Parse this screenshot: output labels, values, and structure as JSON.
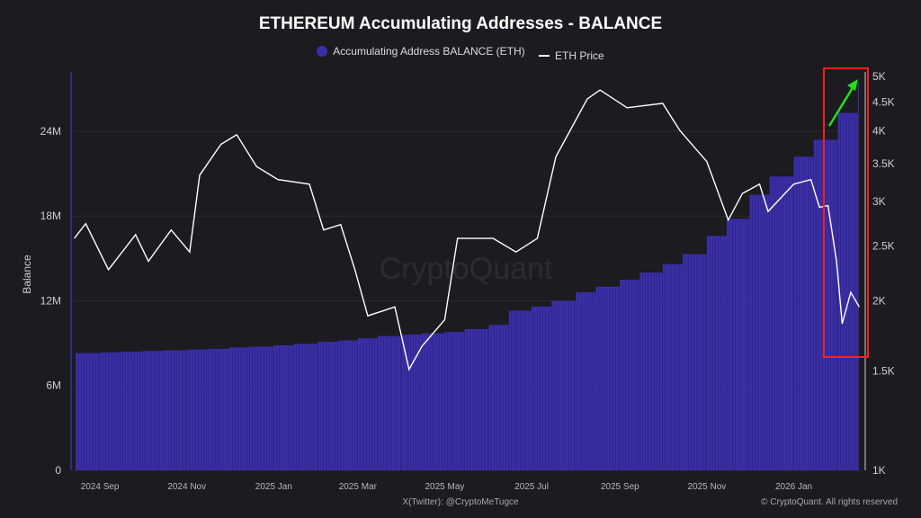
{
  "chart_data": {
    "type": "bar+line",
    "title": "ETHEREUM Accumulating Addresses - BALANCE",
    "ylabel": "Balance",
    "legend": [
      "Accumulating Address BALANCE (ETH)",
      "ETH Price"
    ],
    "legend_placement": "top-center",
    "colors": {
      "balance": "#3b2fa6",
      "price": "#ffffff",
      "highlight_box": "#ff1e1e",
      "arrow": "#22e01a",
      "background": "#1c1b20"
    },
    "left_axis": {
      "ticks": [
        "0",
        "6M",
        "12M",
        "18M",
        "24M"
      ],
      "tick_values": [
        0,
        6000000,
        12000000,
        18000000,
        24000000
      ],
      "range": [
        0,
        28200000
      ]
    },
    "right_axis": {
      "scale": "log",
      "ticks": [
        "1K",
        "1.5K",
        "2K",
        "2.5K",
        "3K",
        "3.5K",
        "4K",
        "4.5K",
        "5K"
      ],
      "tick_values": [
        1000,
        1500,
        2000,
        2500,
        3000,
        3500,
        4000,
        4500,
        5000
      ],
      "range": [
        1000,
        5000
      ]
    },
    "x_ticks": [
      {
        "label": "2024 Sep",
        "date": "2024-09-01"
      },
      {
        "label": "2024 Nov",
        "date": "2024-11-01"
      },
      {
        "label": "2025 Jan",
        "date": "2025-01-01"
      },
      {
        "label": "2025 Mar",
        "date": "2025-03-01"
      },
      {
        "label": "2025 May",
        "date": "2025-05-01"
      },
      {
        "label": "2025 Jul",
        "date": "2025-07-01"
      },
      {
        "label": "2025 Sep",
        "date": "2025-09-01"
      },
      {
        "label": "2025 Nov",
        "date": "2025-11-01"
      },
      {
        "label": "2026 Jan",
        "date": "2026-01-01"
      }
    ],
    "x_range": [
      "2024-08-13",
      "2026-02-17"
    ],
    "balance": {
      "name": "Accumulating Address BALANCE (ETH)",
      "dates": [
        "2024-08-15",
        "2024-09-01",
        "2024-09-15",
        "2024-10-01",
        "2024-10-15",
        "2024-11-01",
        "2024-11-15",
        "2024-12-01",
        "2024-12-15",
        "2025-01-01",
        "2025-01-15",
        "2025-02-01",
        "2025-02-15",
        "2025-03-01",
        "2025-03-15",
        "2025-04-01",
        "2025-04-15",
        "2025-05-01",
        "2025-05-15",
        "2025-06-01",
        "2025-06-15",
        "2025-07-01",
        "2025-07-15",
        "2025-08-01",
        "2025-08-15",
        "2025-09-01",
        "2025-09-15",
        "2025-10-01",
        "2025-10-15",
        "2025-11-01",
        "2025-11-15",
        "2025-12-01",
        "2025-12-15",
        "2026-01-01",
        "2026-01-15",
        "2026-02-01",
        "2026-02-15"
      ],
      "values": [
        8300000,
        8350000,
        8400000,
        8450000,
        8500000,
        8550000,
        8600000,
        8700000,
        8750000,
        8850000,
        8950000,
        9100000,
        9200000,
        9350000,
        9500000,
        9600000,
        9700000,
        9800000,
        10000000,
        10300000,
        11300000,
        11600000,
        12000000,
        12600000,
        13000000,
        13500000,
        14000000,
        14600000,
        15300000,
        16600000,
        17800000,
        19500000,
        20800000,
        22200000,
        23400000,
        25300000,
        27500000
      ]
    },
    "price": {
      "name": "ETH Price",
      "dates": [
        "2024-08-14",
        "2024-08-22",
        "2024-09-07",
        "2024-09-26",
        "2024-10-05",
        "2024-10-21",
        "2024-11-03",
        "2024-11-10",
        "2024-11-25",
        "2024-12-06",
        "2024-12-20",
        "2025-01-04",
        "2025-01-26",
        "2025-02-05",
        "2025-02-17",
        "2025-02-27",
        "2025-03-08",
        "2025-03-27",
        "2025-04-06",
        "2025-04-15",
        "2025-05-01",
        "2025-05-10",
        "2025-06-04",
        "2025-06-20",
        "2025-07-05",
        "2025-07-18",
        "2025-08-09",
        "2025-08-18",
        "2025-09-06",
        "2025-10-01",
        "2025-10-13",
        "2025-11-01",
        "2025-11-16",
        "2025-11-26",
        "2025-12-08",
        "2025-12-14",
        "2026-01-01",
        "2026-01-13",
        "2026-01-19",
        "2026-01-25",
        "2026-01-31",
        "2026-02-04",
        "2026-02-10",
        "2026-02-16"
      ],
      "values": [
        2580,
        2740,
        2270,
        2620,
        2350,
        2670,
        2440,
        3340,
        3790,
        3940,
        3460,
        3280,
        3220,
        2670,
        2730,
        2270,
        1880,
        1950,
        1510,
        1660,
        1850,
        2580,
        2580,
        2440,
        2580,
        3600,
        4560,
        4730,
        4400,
        4480,
        4010,
        3530,
        2780,
        3100,
        3220,
        2880,
        3220,
        3280,
        2930,
        2950,
        2350,
        1820,
        2070,
        1950
      ]
    }
  },
  "watermark": "CryptoQuant",
  "footer": {
    "credit": "X(Twitter): @CryptoMeTugce",
    "copyright": "© CryptoQuant. All rights reserved"
  }
}
